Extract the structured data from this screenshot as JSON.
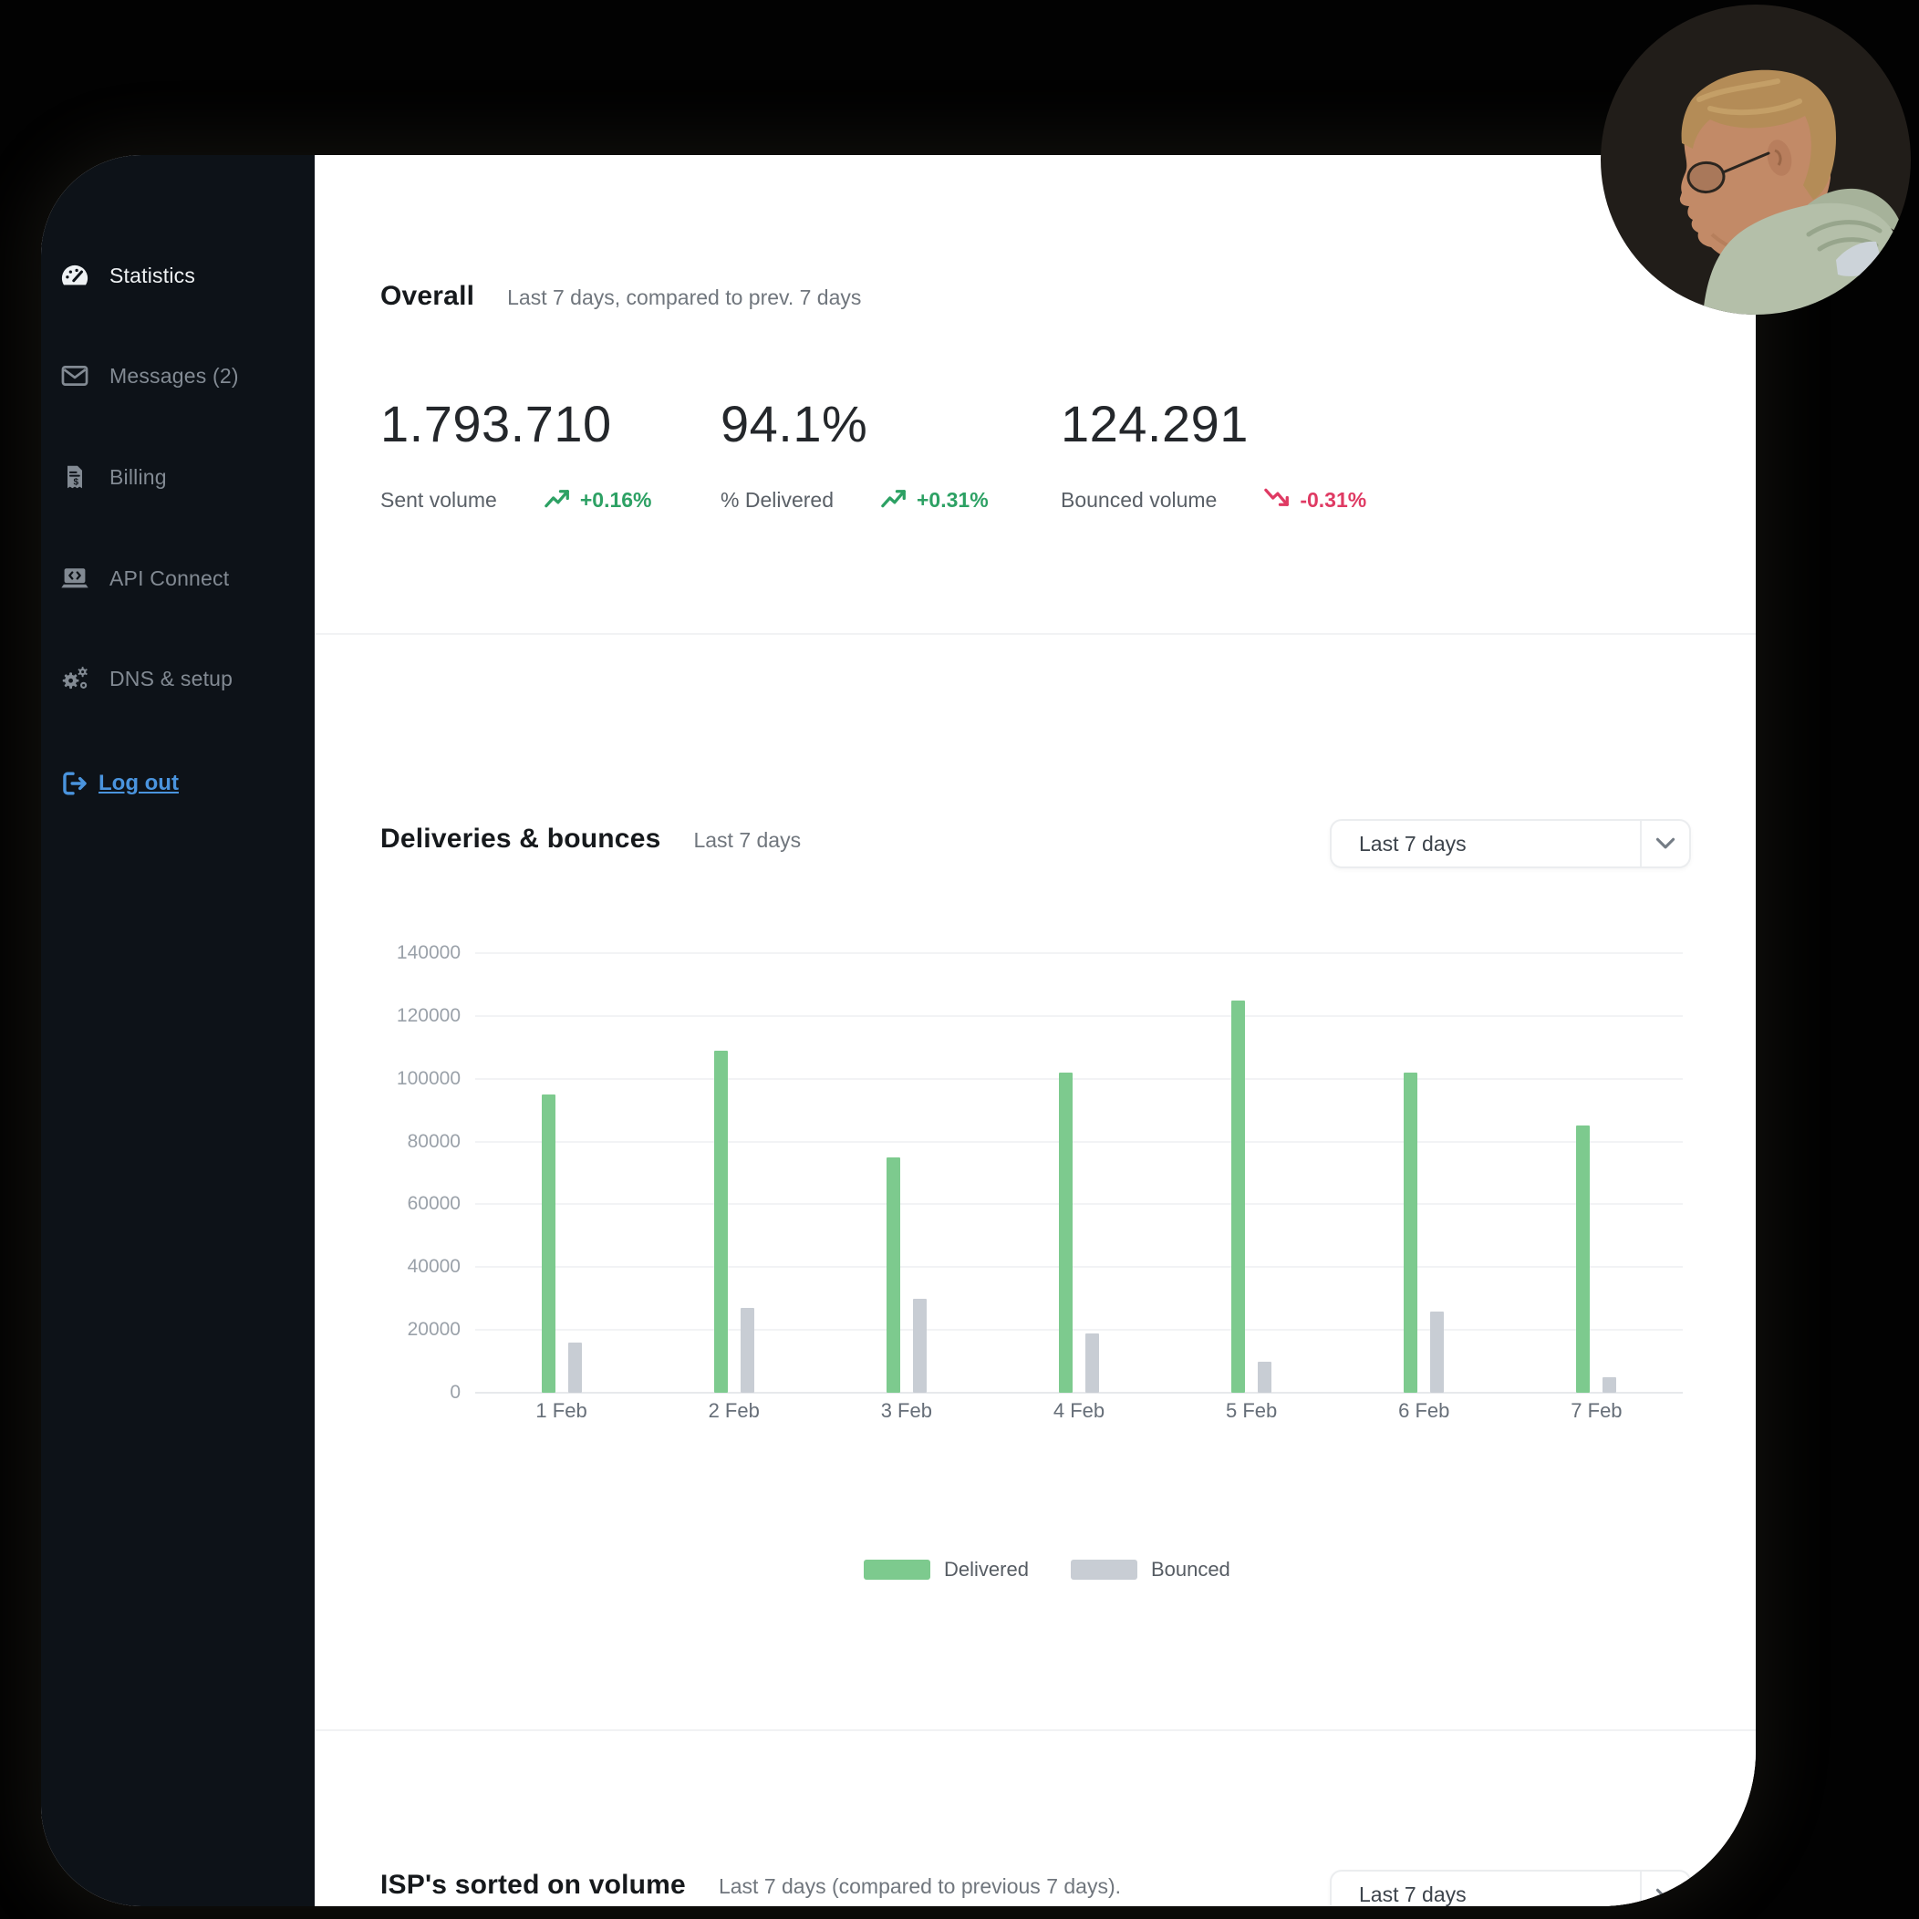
{
  "sidebar": {
    "items": [
      {
        "label": "Statistics",
        "icon": "gauge-icon",
        "active": true
      },
      {
        "label": "Messages (2)",
        "icon": "envelope-icon",
        "active": false
      },
      {
        "label": "Billing",
        "icon": "receipt-icon",
        "active": false
      },
      {
        "label": "API Connect",
        "icon": "laptop-code-icon",
        "active": false
      },
      {
        "label": "DNS & setup",
        "icon": "gears-icon",
        "active": false
      }
    ],
    "logout_label": "Log out"
  },
  "overall": {
    "title": "Overall",
    "subtitle": "Last 7 days, compared to prev. 7 days",
    "stats": [
      {
        "value": "1.793.710",
        "label": "Sent volume",
        "change": "+0.16%",
        "direction": "up"
      },
      {
        "value": "94.1%",
        "label": "% Delivered",
        "change": "+0.31%",
        "direction": "up"
      },
      {
        "value": "124.291",
        "label": "Bounced volume",
        "change": "-0.31%",
        "direction": "down"
      }
    ]
  },
  "deliveries": {
    "title": "Deliveries & bounces",
    "subtitle": "Last 7 days",
    "dropdown_value": "Last 7 days"
  },
  "chart_data": {
    "type": "bar",
    "title": "Deliveries & bounces",
    "categories": [
      "1 Feb",
      "2 Feb",
      "3 Feb",
      "4 Feb",
      "5 Feb",
      "6 Feb",
      "7 Feb"
    ],
    "series": [
      {
        "name": "Delivered",
        "color": "#7dca8e",
        "values": [
          95000,
          109000,
          75000,
          102000,
          125000,
          102000,
          85000
        ]
      },
      {
        "name": "Bounced",
        "color": "#c8cdd4",
        "values": [
          16000,
          27000,
          30000,
          19000,
          10000,
          26000,
          5000
        ]
      }
    ],
    "xlabel": "",
    "ylabel": "",
    "ylim": [
      0,
      140000
    ],
    "ytick_step": 20000,
    "grid": true,
    "legend_position": "bottom"
  },
  "isp": {
    "title": "ISP's sorted on volume",
    "subtitle": "Last 7 days (compared to previous 7 days).",
    "dropdown_value": "Last 7 days"
  },
  "colors": {
    "positive": "#2da164",
    "negative": "#df3a63",
    "sidebar_bg": "#0d1218",
    "logout_blue": "#4a94de"
  }
}
